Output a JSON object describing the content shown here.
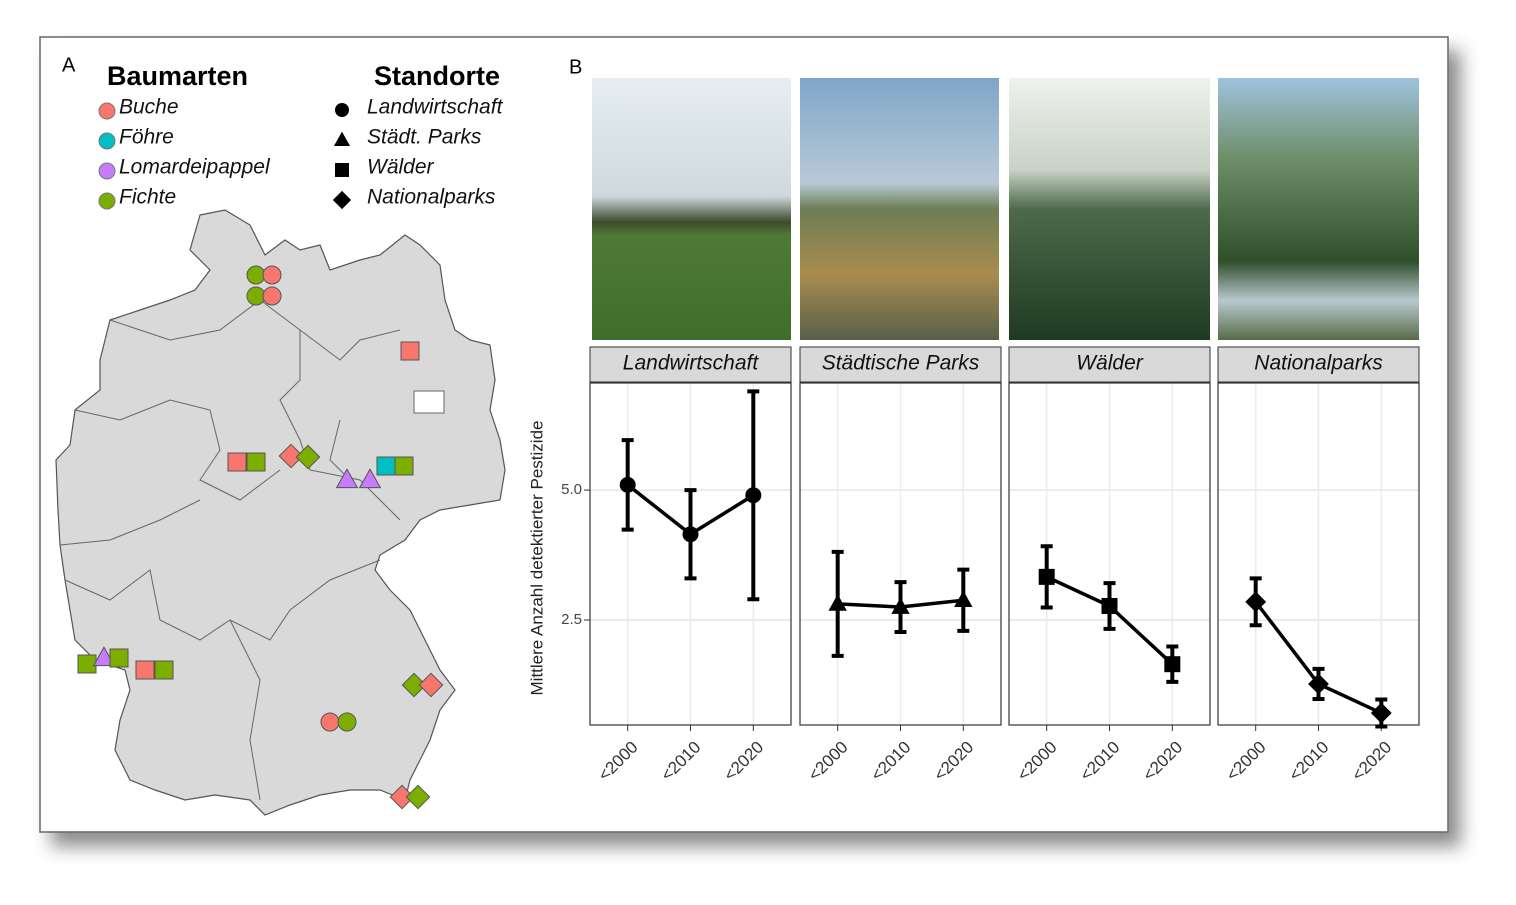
{
  "chart_data": [
    {
      "type": "map",
      "panel_label": "A",
      "legend_species": {
        "title": "Baumarten",
        "items": [
          {
            "label": "Buche",
            "color": "#f8766d"
          },
          {
            "label": "Föhre",
            "color": "#00bfc4"
          },
          {
            "label": "Lomardeipappel",
            "color": "#c77cff"
          },
          {
            "label": "Fichte",
            "color": "#7cae00"
          }
        ]
      },
      "legend_sites": {
        "title": "Standorte",
        "items": [
          {
            "label": "Landwirtschaft",
            "shape": "circle"
          },
          {
            "label": "Städt. Parks",
            "shape": "triangle"
          },
          {
            "label": "Wälder",
            "shape": "square"
          },
          {
            "label": "Nationalparks",
            "shape": "diamond"
          }
        ]
      }
    },
    {
      "type": "line",
      "panel_label": "B",
      "ylabel": "Mittlere Anzahl detektierter Pestizide",
      "categories": [
        "<2000",
        "<2010",
        "<2020"
      ],
      "ylim": [
        0.48,
        7.06
      ],
      "yticks": [
        {
          "value": 2.5,
          "label": "2.5"
        },
        {
          "value": 5,
          "label": "5.0"
        }
      ],
      "grid": true,
      "color": "#000000",
      "facets": [
        {
          "title": "Landwirtschaft",
          "shape": "circle",
          "values": [
            5.1,
            4.15,
            4.9
          ],
          "errors": [
            0.86,
            0.85,
            2.0
          ]
        },
        {
          "title": "Städtische Parks",
          "shape": "triangle",
          "values": [
            2.81,
            2.75,
            2.88
          ],
          "errors": [
            1.0,
            0.48,
            0.59
          ]
        },
        {
          "title": "Wälder",
          "shape": "square",
          "values": [
            3.33,
            2.77,
            1.65
          ],
          "errors": [
            0.59,
            0.44,
            0.34
          ]
        },
        {
          "title": "Nationalparks",
          "shape": "diamond",
          "values": [
            2.85,
            1.27,
            0.71
          ],
          "errors": [
            0.45,
            0.29,
            0.26
          ]
        }
      ]
    }
  ]
}
